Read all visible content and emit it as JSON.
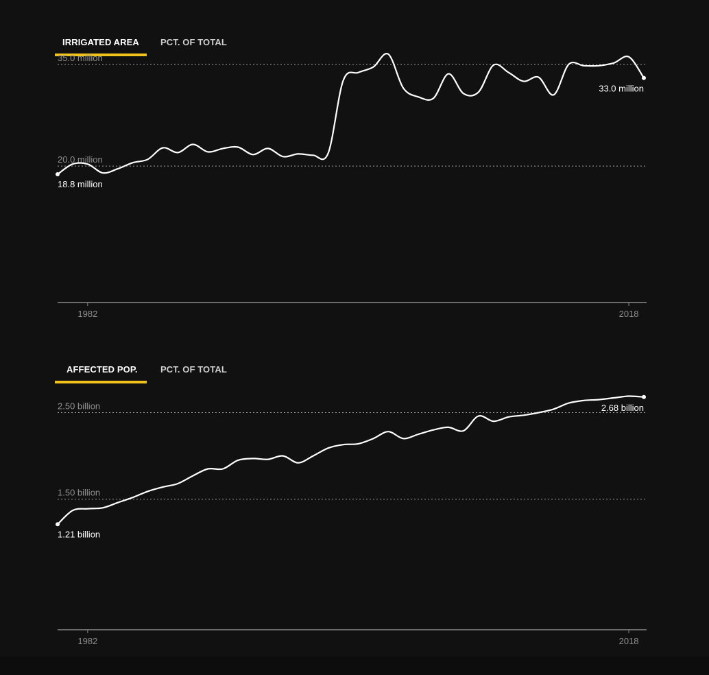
{
  "colors": {
    "background": "#111111",
    "accent": "#f2c21b",
    "line": "#ffffff",
    "grid": "#bdbdbd",
    "axis": "#8a8a8a",
    "muted_text": "#8f8f8f"
  },
  "charts": [
    {
      "tabs": [
        {
          "label": "IRRIGATED AREA",
          "active": true
        },
        {
          "label": "PCT. OF TOTAL",
          "active": false
        }
      ],
      "reference_labels": [
        "35.0 million",
        "20.0 million"
      ],
      "start_label": "18.8 million",
      "end_label": "33.0 million",
      "x_ticks": [
        "1982",
        "2018"
      ]
    },
    {
      "tabs": [
        {
          "label": "AFFECTED POP.",
          "active": true
        },
        {
          "label": "PCT. OF TOTAL",
          "active": false
        }
      ],
      "reference_labels": [
        "2.50 billion",
        "1.50 billion"
      ],
      "start_label": "1.21 billion",
      "end_label": "2.68 billion",
      "x_ticks": [
        "1982",
        "2018"
      ]
    }
  ],
  "chart_data": [
    {
      "type": "line",
      "x": [
        1980,
        1981,
        1982,
        1983,
        1984,
        1985,
        1986,
        1987,
        1988,
        1989,
        1990,
        1991,
        1992,
        1993,
        1994,
        1995,
        1996,
        1997,
        1998,
        1999,
        2000,
        2001,
        2002,
        2003,
        2004,
        2005,
        2006,
        2007,
        2008,
        2009,
        2010,
        2011,
        2012,
        2013,
        2014,
        2015,
        2016,
        2017,
        2018,
        2019
      ],
      "series": [
        {
          "values": [
            18.8,
            20.3,
            20.3,
            19.0,
            19.6,
            20.5,
            21.0,
            22.7,
            22.0,
            23.2,
            22.1,
            22.6,
            22.8,
            21.7,
            22.6,
            21.4,
            21.8,
            21.6,
            21.9,
            32.6,
            33.8,
            34.6,
            36.5,
            31.5,
            30.2,
            30.0,
            33.6,
            30.7,
            30.9,
            34.9,
            33.8,
            32.5,
            33.1,
            30.5,
            35.0,
            34.8,
            34.8,
            35.2,
            36.1,
            33.0
          ]
        }
      ],
      "reference_lines": [
        35.0,
        20.0
      ],
      "ylim": [
        0,
        37
      ],
      "xlim": [
        1980,
        2019
      ]
    },
    {
      "type": "line",
      "x": [
        1980,
        1981,
        1982,
        1983,
        1984,
        1985,
        1986,
        1987,
        1988,
        1989,
        1990,
        1991,
        1992,
        1993,
        1994,
        1995,
        1996,
        1997,
        1998,
        1999,
        2000,
        2001,
        2002,
        2003,
        2004,
        2005,
        2006,
        2007,
        2008,
        2009,
        2010,
        2011,
        2012,
        2013,
        2014,
        2015,
        2016,
        2017,
        2018,
        2019
      ],
      "series": [
        {
          "values": [
            1.21,
            1.37,
            1.39,
            1.4,
            1.46,
            1.52,
            1.59,
            1.64,
            1.68,
            1.77,
            1.85,
            1.85,
            1.95,
            1.97,
            1.96,
            2.0,
            1.92,
            2.0,
            2.09,
            2.13,
            2.14,
            2.2,
            2.28,
            2.2,
            2.25,
            2.3,
            2.33,
            2.29,
            2.46,
            2.4,
            2.45,
            2.47,
            2.5,
            2.54,
            2.61,
            2.64,
            2.65,
            2.67,
            2.69,
            2.68
          ]
        }
      ],
      "reference_lines": [
        2.5,
        1.5
      ],
      "ylim": [
        0,
        2.9
      ],
      "xlim": [
        1980,
        2019
      ]
    }
  ]
}
